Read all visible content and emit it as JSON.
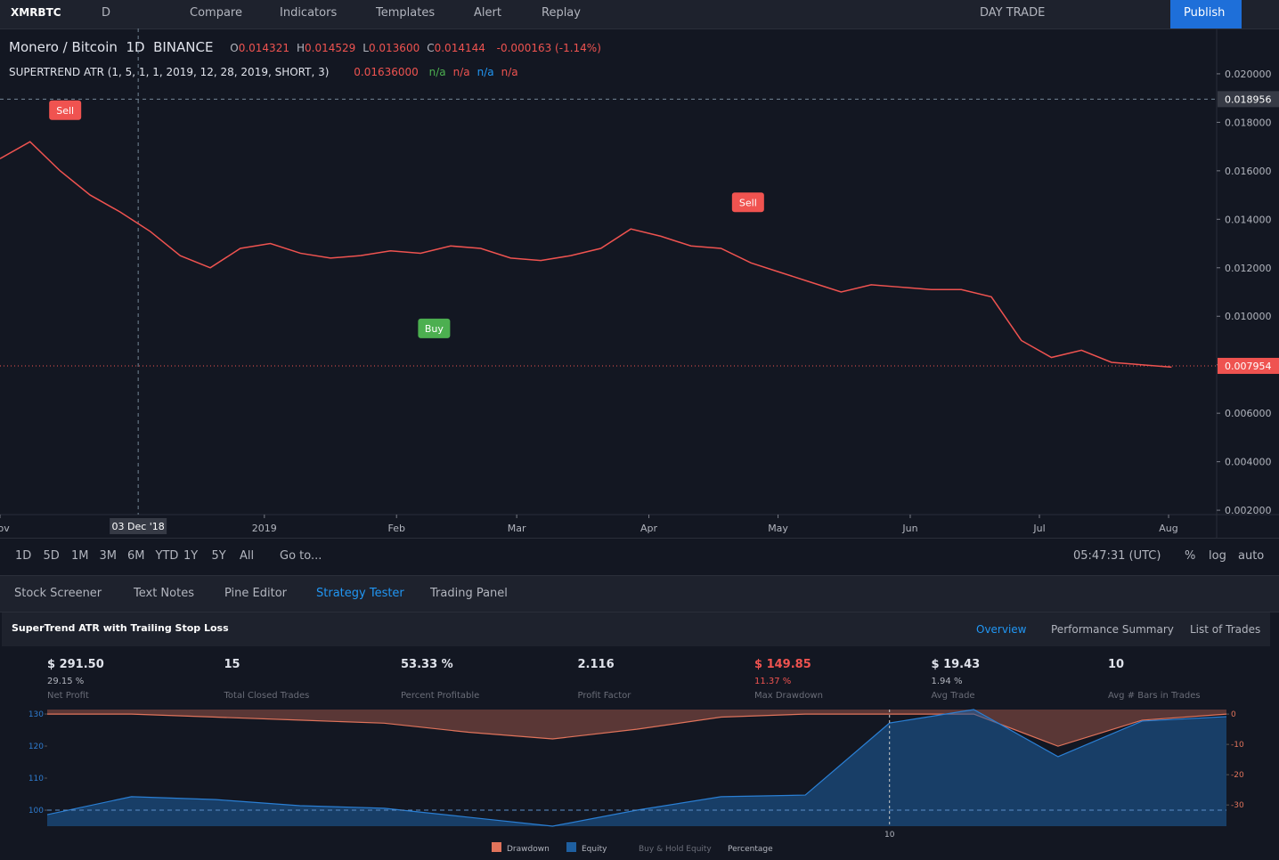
{
  "toolbar": {
    "symbol": "XMRBTC",
    "interval": "D",
    "items": [
      "Compare",
      "Indicators",
      "Templates",
      "Alert",
      "Replay"
    ],
    "layout": "DAY TRADE",
    "publish": "Publish"
  },
  "legend": {
    "pair": "Monero / Bitcoin",
    "interval": "1D",
    "exchange": "BINANCE",
    "ohlc": [
      {
        "key": "O",
        "value": "0.014321"
      },
      {
        "key": "H",
        "value": "0.014529"
      },
      {
        "key": "L",
        "value": "0.013600"
      },
      {
        "key": "C",
        "value": "0.014144"
      }
    ],
    "change": "-0.000163 (-1.14%)"
  },
  "indicator": {
    "name": "SUPERTREND ATR (1, 5, 1, 1, 2019, 12, 28, 2019, SHORT, 3)",
    "value": "0.01636000",
    "na": [
      "n/a",
      "n/a",
      "n/a",
      "n/a"
    ]
  },
  "price_chart": {
    "type": "line",
    "color": "#ef5350",
    "values": [
      0.0165,
      0.0172,
      0.016,
      0.015,
      0.0143,
      0.0135,
      0.0125,
      0.012,
      0.0128,
      0.013,
      0.0126,
      0.0124,
      0.0125,
      0.0127,
      0.0126,
      0.0129,
      0.0128,
      0.0124,
      0.0123,
      0.0125,
      0.0128,
      0.0136,
      0.0133,
      0.0129,
      0.0128,
      0.0122,
      0.0118,
      0.0114,
      0.011,
      0.0113,
      0.0112,
      0.0111,
      0.0111,
      0.0108,
      0.009,
      0.0083,
      0.0086,
      0.0081,
      0.008,
      0.0079
    ],
    "xlim": [
      0,
      40.5
    ],
    "xticks": [
      {
        "value": 0,
        "label": "Nov"
      },
      {
        "value": 8.8,
        "label": "2019"
      },
      {
        "value": 13.2,
        "label": "Feb"
      },
      {
        "value": 17.2,
        "label": "Mar"
      },
      {
        "value": 21.6,
        "label": "Apr"
      },
      {
        "value": 25.9,
        "label": "May"
      },
      {
        "value": 30.3,
        "label": "Jun"
      },
      {
        "value": 34.6,
        "label": "Jul"
      },
      {
        "value": 38.9,
        "label": "Aug"
      }
    ],
    "ylim": [
      0.00182,
      0.02187
    ],
    "yticks": [
      {
        "value": 0.002,
        "label": "0.002000"
      },
      {
        "value": 0.004,
        "label": "0.004000"
      },
      {
        "value": 0.006,
        "label": "0.006000"
      },
      {
        "value": 0.008,
        "label": "0.008000"
      },
      {
        "value": 0.01,
        "label": "0.010000"
      },
      {
        "value": 0.012,
        "label": "0.012000"
      },
      {
        "value": 0.014,
        "label": "0.014000"
      },
      {
        "value": 0.016,
        "label": "0.016000"
      },
      {
        "value": 0.018,
        "label": "0.018000"
      },
      {
        "value": 0.02,
        "label": "0.020000"
      }
    ],
    "crosshair": {
      "x": {
        "value": 4.6,
        "label": "03 Dec '18"
      },
      "y": {
        "value": 0.018956,
        "label": "0.018956"
      }
    },
    "last_price": {
      "value": 0.007954,
      "label": "0.007954"
    },
    "annotations": [
      {
        "text": "Sell",
        "x": 2.17,
        "y": 0.0185,
        "color": "#f05350"
      },
      {
        "text": "Buy",
        "x": 14.45,
        "y": 0.0095,
        "color": "#4caf50"
      },
      {
        "text": "Sell",
        "x": 24.9,
        "y": 0.0147,
        "color": "#f05350"
      }
    ]
  },
  "time_bar": {
    "ranges": [
      "1D",
      "5D",
      "1M",
      "3M",
      "6M",
      "YTD",
      "1Y",
      "5Y",
      "All"
    ],
    "goto": "Go to...",
    "clock": "05:47:31 (UTC)",
    "options": [
      "%",
      "log",
      "auto"
    ]
  },
  "tabs": [
    "Stock Screener",
    "Text Notes",
    "Pine Editor",
    "Strategy Tester",
    "Trading Panel"
  ],
  "strategy": {
    "name": "SuperTrend ATR with Trailing Stop Loss",
    "views": [
      "Overview",
      "Performance Summary",
      "List of Trades"
    ],
    "stats": [
      {
        "value": "$ 291.50",
        "sub": "29.15 %",
        "label": "Net Profit"
      },
      {
        "value": "15",
        "label": "Total Closed Trades"
      },
      {
        "value": "53.33 %",
        "label": "Percent Profitable"
      },
      {
        "value": "2.116",
        "label": "Profit Factor"
      },
      {
        "value": "$ 149.85",
        "sub": "11.37 %",
        "label": "Max Drawdown"
      },
      {
        "value": "$ 19.43",
        "sub": "1.94 %",
        "label": "Avg Trade"
      },
      {
        "value": "10",
        "label": "Avg # Bars in Trades"
      }
    ]
  },
  "equity_chart": {
    "type": "area",
    "xlim": [
      0,
      14
    ],
    "xticks": [
      10
    ],
    "ylim": [
      95,
      131.4
    ],
    "yticks": [
      100,
      110,
      120,
      130
    ],
    "y2lim": [
      -37,
      1.5
    ],
    "y2ticks": [
      0,
      -10,
      -20,
      -30
    ],
    "series": [
      {
        "name": "Drawdown",
        "color": "#e0735b",
        "axis": "y2",
        "values": [
          0,
          0,
          -1,
          -2,
          -3,
          -6,
          -8.2,
          -5,
          -1,
          0,
          0,
          0,
          -10.6,
          -2,
          0
        ]
      },
      {
        "name": "Equity",
        "color": "#1e5fa0",
        "values": [
          98.6,
          104.2,
          103.3,
          101.4,
          100.6,
          97.8,
          95,
          100,
          104.2,
          104.7,
          127.2,
          131.4,
          116.7,
          127.8,
          129.2
        ]
      }
    ],
    "baseline": {
      "name": "Buy & Hold Equity",
      "value": 100
    },
    "mode": "Percentage"
  }
}
